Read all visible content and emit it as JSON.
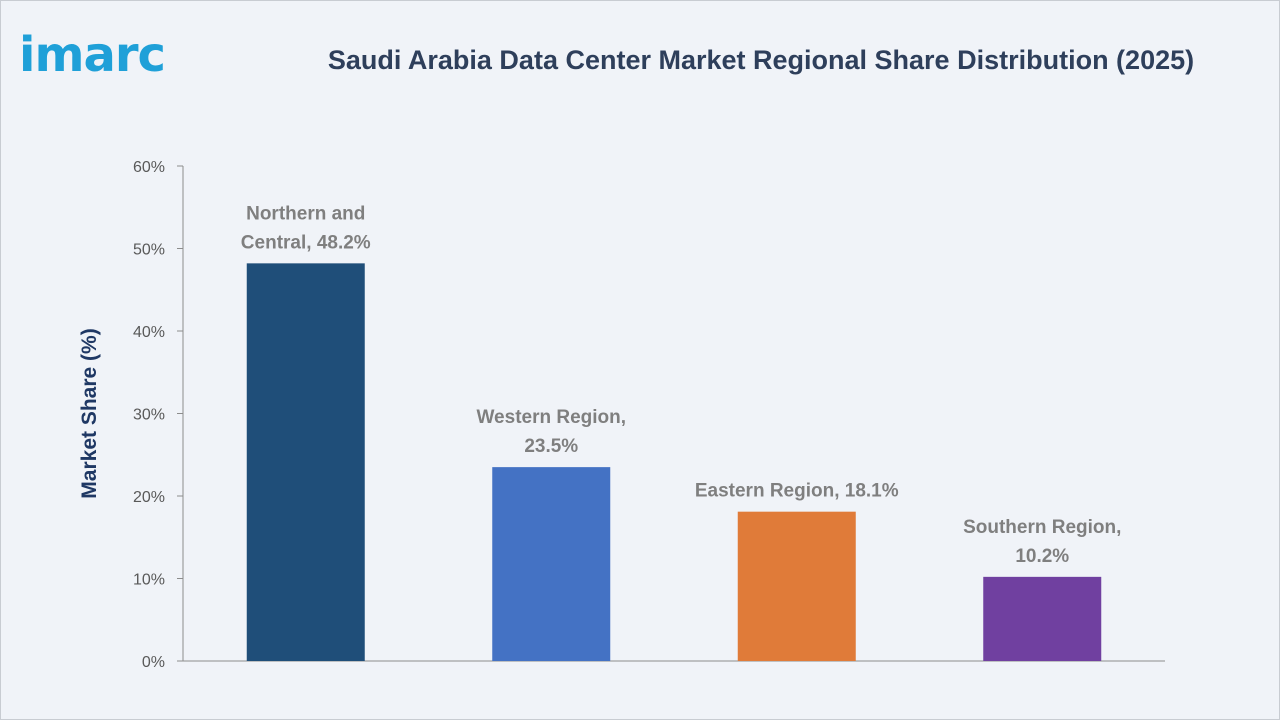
{
  "brand": {
    "logo_text": "imarc",
    "color": "#1fa0d8"
  },
  "colors": {
    "title": "#2e3f5b",
    "axis_title": "#1f3864",
    "tick_text": "#595959",
    "label_text": "#7f7f7f",
    "axis_line": "#8c8c8c"
  },
  "chart_data": {
    "type": "bar",
    "title": "Saudi Arabia Data Center Market Regional Share Distribution (2025)",
    "xlabel": "",
    "ylabel": "Market Share (%)",
    "ylim": [
      0,
      60
    ],
    "yticks": [
      0,
      10,
      20,
      30,
      40,
      50,
      60
    ],
    "ytick_labels": [
      "0%",
      "10%",
      "20%",
      "30%",
      "40%",
      "50%",
      "60%"
    ],
    "grid": false,
    "legend": "none",
    "categories": [
      "Northern and Central",
      "Western Region",
      "Eastern Region",
      "Southern Region"
    ],
    "values": [
      48.2,
      23.5,
      18.1,
      10.2
    ],
    "bar_colors": [
      "#1f4e79",
      "#4472c4",
      "#e07b39",
      "#7040a0"
    ],
    "data_labels": [
      [
        "Northern and",
        "Central, 48.2%"
      ],
      [
        "Western Region,",
        "23.5%"
      ],
      [
        "Eastern Region, 18.1%"
      ],
      [
        "Southern Region,",
        "10.2%"
      ]
    ]
  }
}
